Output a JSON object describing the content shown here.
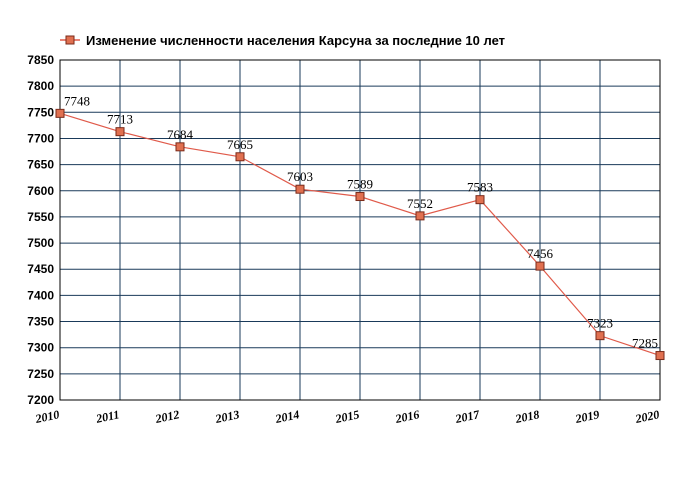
{
  "chart_data": {
    "type": "line",
    "title": "Изменение численности населения Карсуна за последние 10 лет",
    "legend_label": "Изменение численности населения Карсуна за последние 10 лет",
    "legend_position": "top-left",
    "xlabel": "",
    "ylabel": "",
    "grid": true,
    "x": [
      "2010",
      "2011",
      "2012",
      "2013",
      "2014",
      "2015",
      "2016",
      "2017",
      "2018",
      "2019",
      "2020"
    ],
    "series": [
      {
        "name": "Изменение численности населения Карсуна за последние 10 лет",
        "values": [
          7748,
          7713,
          7684,
          7665,
          7603,
          7589,
          7552,
          7583,
          7456,
          7323,
          7285
        ]
      }
    ],
    "ylim": [
      7200,
      7850
    ],
    "yticks": [
      7200,
      7250,
      7300,
      7350,
      7400,
      7450,
      7500,
      7550,
      7600,
      7650,
      7700,
      7750,
      7800,
      7850
    ],
    "colors": {
      "line": "#e05a4a",
      "marker_fill": "#e07050",
      "marker_stroke": "#7a2a1a",
      "grid": "#1a3a5a",
      "frame": "#000000"
    }
  }
}
